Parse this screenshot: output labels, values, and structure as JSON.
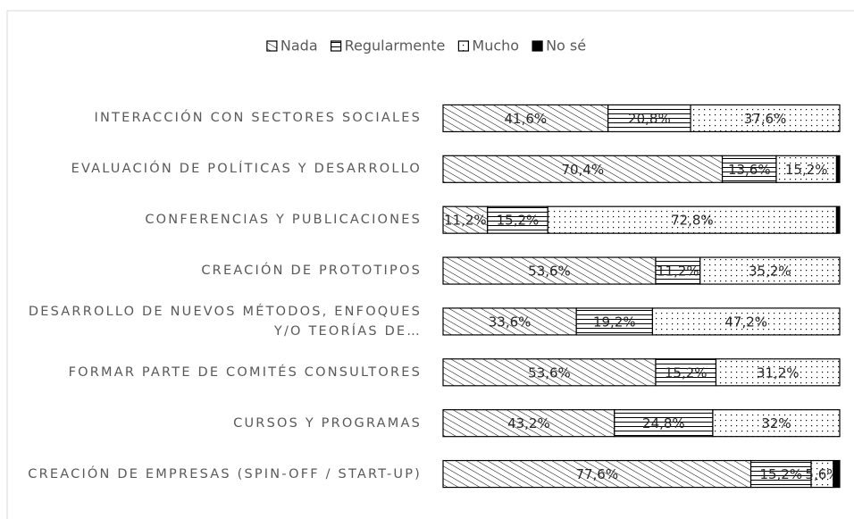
{
  "chart_data": {
    "type": "stacked-bar-horizontal",
    "categories": [
      "INTERACCIÓN CON SECTORES SOCIALES",
      "EVALUACIÓN DE POLÍTICAS Y DESARROLLO",
      "CONFERENCIAS Y PUBLICACIONES",
      "CREACIÓN DE PROTOTIPOS",
      "DESARROLLO DE NUEVOS MÉTODOS, ENFOQUES Y/O TEORÍAS DE…",
      "FORMAR PARTE DE COMITÉS CONSULTORES",
      "CURSOS Y PROGRAMAS",
      "CREACIÓN DE EMPRESAS (SPIN-OFF / START-UP)"
    ],
    "series": [
      {
        "name": "Nada",
        "color": "#000000",
        "pattern": "diagonal",
        "values": [
          41.6,
          70.4,
          11.2,
          53.6,
          33.6,
          53.6,
          43.2,
          77.6
        ],
        "value_labels": [
          "41,6%",
          "70,4%",
          "11,2%",
          "53,6%",
          "33,6%",
          "53,6%",
          "43,2%",
          "77,6%"
        ]
      },
      {
        "name": "Regularmente",
        "color": "#000000",
        "pattern": "horizontal",
        "values": [
          20.8,
          13.6,
          15.2,
          11.2,
          19.2,
          15.2,
          24.8,
          15.2
        ],
        "value_labels": [
          "20,8%",
          "13,6%",
          "15,2%",
          "11,2%",
          "19,2%",
          "15,2%",
          "24,8%",
          "15,2%"
        ]
      },
      {
        "name": "Mucho",
        "color": "#000000",
        "pattern": "dots",
        "values": [
          37.6,
          15.2,
          72.8,
          35.2,
          47.2,
          31.2,
          32,
          5.6
        ],
        "value_labels": [
          "37,6%",
          "15,2%",
          "72,8%",
          "35,2%",
          "47,2%",
          "31,2%",
          "32%",
          "5,6%"
        ]
      },
      {
        "name": "No sé",
        "color": "#000000",
        "pattern": "solid",
        "values": [
          0,
          0.8,
          0.8,
          0,
          0,
          0,
          0,
          1.6
        ]
      }
    ],
    "xlim": [
      0,
      100
    ],
    "legend": "top"
  }
}
